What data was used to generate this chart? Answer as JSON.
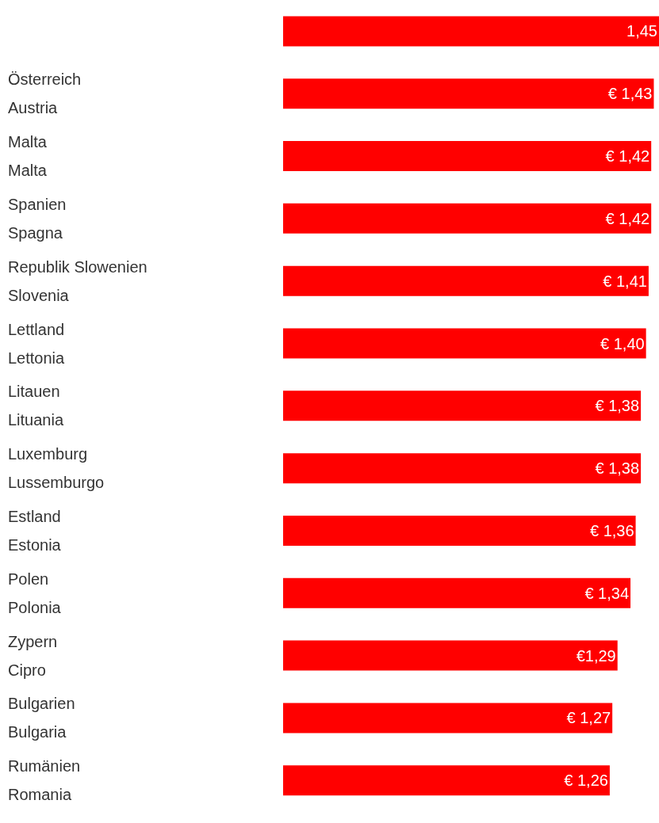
{
  "chart_data": {
    "type": "bar",
    "orientation": "horizontal",
    "categories": [
      null,
      "Österreich\nAustria",
      "Malta\nMalta",
      "Spanien\nSpagna",
      "Republik Slowenien\nSlovenia",
      "Lettland\nLettonia",
      "Litauen\nLituania",
      "Luxemburg\nLussemburgo",
      "Estland\nEstonia",
      "Polen\nPolonia",
      "Zypern\nCipro",
      "Bulgarien\nBulgaria",
      "Rumänien\nRomania"
    ],
    "series": [
      {
        "color": "#ff0000",
        "values": [
          1.45,
          1.43,
          1.42,
          1.42,
          1.41,
          1.4,
          1.38,
          1.38,
          1.36,
          1.34,
          1.29,
          1.27,
          1.26
        ],
        "value_labels": [
          "1,45",
          "€ 1,43",
          "€ 1,42",
          "€ 1,42",
          "€ 1,41",
          "€ 1,40",
          "€ 1,38",
          "€ 1,38",
          "€ 1,36",
          "€ 1,34",
          "€1,29",
          "€ 1,27",
          "€ 1,26"
        ]
      }
    ],
    "grid": false
  }
}
